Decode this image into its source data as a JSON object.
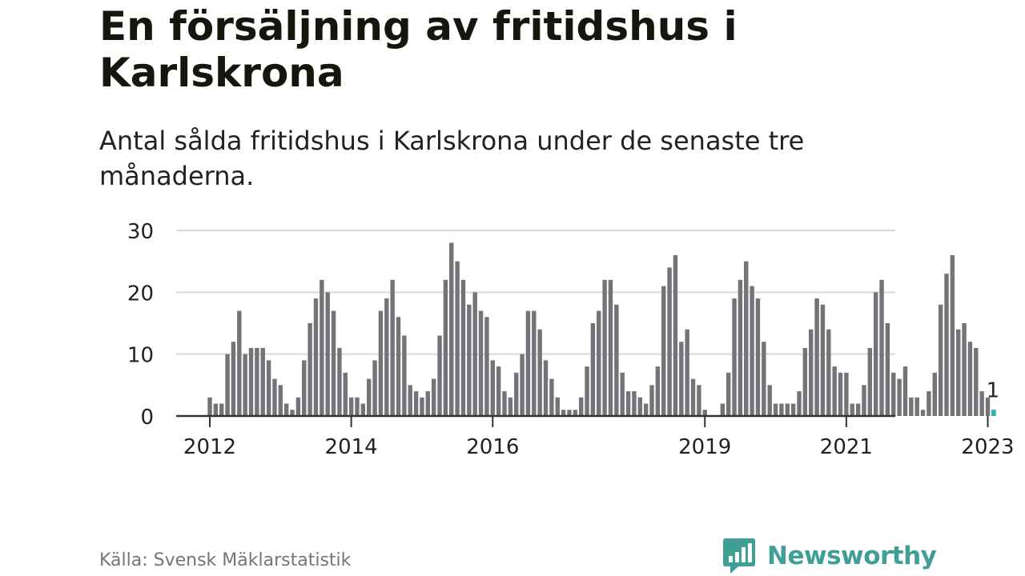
{
  "title": "En försäljning av fritidshus i Karlskrona",
  "subtitle": "Antal sålda fritidshus i Karlskrona under de senaste tre månaderna.",
  "source": "Källa: Svensk Mäklarstatistik",
  "brand": {
    "name": "Newsworthy",
    "logo_icon": "bar-chart-speech-bubble-icon",
    "color": "#3f9e95"
  },
  "colors": {
    "bar": "#747378",
    "highlight": "#2bb3a6",
    "grid": "#d9d9d9",
    "axis": "#333333",
    "text": "#222222"
  },
  "chart_data": {
    "type": "bar",
    "title": "",
    "xlabel": "",
    "ylabel": "",
    "ylim": [
      0,
      30
    ],
    "yticks": [
      0,
      10,
      20,
      30
    ],
    "grid": true,
    "x_start": "2012-01",
    "x_tick_labels": [
      {
        "label": "2012",
        "month": "2012-01"
      },
      {
        "label": "2014",
        "month": "2014-01"
      },
      {
        "label": "2016",
        "month": "2016-01"
      },
      {
        "label": "2019",
        "month": "2019-01"
      },
      {
        "label": "2021",
        "month": "2021-01"
      },
      {
        "label": "2023",
        "month": "2023-01"
      }
    ],
    "values": [
      3,
      2,
      2,
      10,
      12,
      17,
      10,
      11,
      11,
      11,
      9,
      6,
      5,
      2,
      1,
      3,
      9,
      15,
      19,
      22,
      20,
      17,
      11,
      7,
      3,
      3,
      2,
      6,
      9,
      17,
      19,
      22,
      16,
      13,
      5,
      4,
      3,
      4,
      6,
      13,
      22,
      28,
      25,
      22,
      18,
      20,
      17,
      16,
      9,
      8,
      4,
      3,
      7,
      10,
      17,
      17,
      14,
      9,
      6,
      3,
      1,
      1,
      1,
      3,
      8,
      15,
      17,
      22,
      22,
      18,
      7,
      4,
      4,
      3,
      2,
      5,
      8,
      21,
      24,
      26,
      12,
      14,
      6,
      5,
      1,
      0,
      0,
      2,
      7,
      19,
      22,
      25,
      21,
      19,
      12,
      5,
      2,
      2,
      2,
      2,
      4,
      11,
      14,
      19,
      18,
      14,
      8,
      7,
      7,
      2,
      2,
      5,
      11,
      20,
      22,
      15,
      7,
      6,
      8,
      3,
      3,
      1,
      4,
      7,
      18,
      23,
      26,
      14,
      15,
      12,
      11,
      4,
      3,
      1
    ],
    "highlight": {
      "month": "2023-02",
      "value": 1,
      "label": "1"
    }
  }
}
